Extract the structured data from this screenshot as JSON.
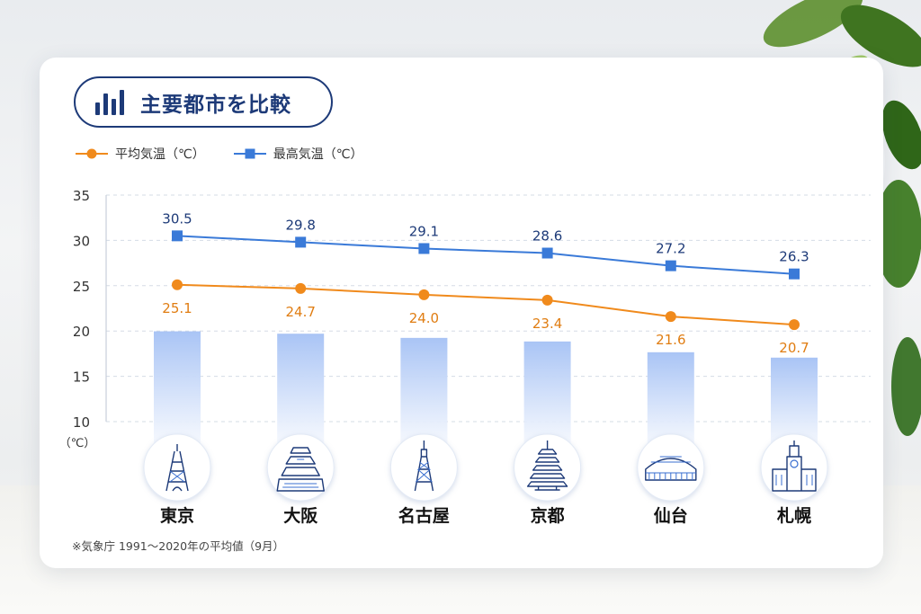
{
  "header": {
    "title": "主要都市を比較",
    "title_icon": "bar-chart-icon"
  },
  "colors": {
    "accent": "#1d3a78",
    "avg": "#f08a1c",
    "max": "#3a7ad8",
    "bar": "#a9c4f5"
  },
  "legend": [
    {
      "label": "平均気温（℃）",
      "marker": "circle",
      "color": "#f08a1c"
    },
    {
      "label": "最高気温（℃）",
      "marker": "square",
      "color": "#3a7ad8"
    }
  ],
  "chart_data": {
    "type": "line",
    "categories": [
      "東京",
      "大阪",
      "名古屋",
      "京都",
      "仙台",
      "札幌"
    ],
    "category_icons": [
      "tokyo-tower-icon",
      "osaka-castle-icon",
      "nagoya-tv-tower-icon",
      "kyoto-pagoda-icon",
      "sendai-stadium-icon",
      "sapporo-clock-tower-icon"
    ],
    "series": [
      {
        "name": "最高気温（℃）",
        "values": [
          30.5,
          29.8,
          29.1,
          28.6,
          27.2,
          26.3
        ],
        "labels": [
          "30.5",
          "29.8",
          "29.1",
          "28.6",
          "27.2",
          "26.3"
        ]
      },
      {
        "name": "平均気温（℃）",
        "values": [
          25.1,
          24.7,
          24.0,
          23.4,
          21.6,
          20.7
        ],
        "labels": [
          "25.1",
          "24.7",
          "24.0",
          "23.4",
          "21.6",
          "20.7"
        ]
      }
    ],
    "ylim": [
      10,
      35
    ],
    "yticks": [
      "10",
      "15",
      "20",
      "25",
      "30",
      "35"
    ],
    "yunit": "（℃）",
    "grid": true,
    "legend_position": "top-left"
  },
  "footnote": "※気象庁 1991〜2020年の平均値（9月）"
}
